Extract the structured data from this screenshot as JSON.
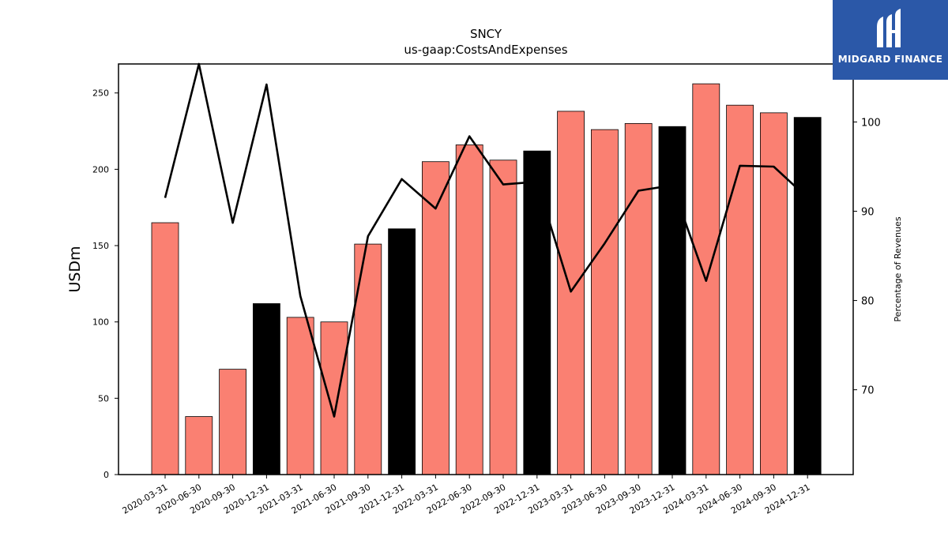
{
  "chart_data": {
    "type": "bar",
    "title": "SNCY",
    "subtitle": "us-gaap:CostsAndExpenses",
    "ylabel": "USDm",
    "ylabel_right": "Percentage of Revenues",
    "categories": [
      "2020-03-31",
      "2020-06-30",
      "2020-09-30",
      "2020-12-31",
      "2021-03-31",
      "2021-06-30",
      "2021-09-30",
      "2021-12-31",
      "2022-03-31",
      "2022-06-30",
      "2022-09-30",
      "2022-12-31",
      "2023-03-31",
      "2023-06-30",
      "2023-09-30",
      "2023-12-31",
      "2024-03-31",
      "2024-06-30",
      "2024-09-30",
      "2024-12-31"
    ],
    "series": [
      {
        "type": "bar",
        "values": [
          165,
          38,
          69,
          112,
          103,
          100,
          151,
          161,
          205,
          216,
          206,
          212,
          238,
          226,
          230,
          228,
          256,
          242,
          237,
          234
        ]
      },
      {
        "type": "line",
        "axis": "right",
        "values": [
          91.5,
          106.5,
          88.7,
          104.2,
          80.5,
          67,
          87.2,
          93.6,
          90.3,
          98.4,
          93,
          93.3,
          81,
          86.4,
          92.3,
          92.9,
          82.2,
          95.1,
          95,
          91.5
        ]
      }
    ],
    "bar_colors": {
      "quarter": "#fa8072",
      "year_end": "#000000"
    },
    "line_color": "#000000",
    "ylim": [
      0,
      269
    ],
    "ylim_right": [
      60.5,
      106.5
    ],
    "yticks": [
      0,
      50,
      100,
      150,
      200,
      250
    ],
    "yticks_right": [
      70,
      80,
      90,
      100
    ],
    "grid": false,
    "legend": "none"
  },
  "logo": {
    "text": "MIDGARD FINANCE"
  }
}
